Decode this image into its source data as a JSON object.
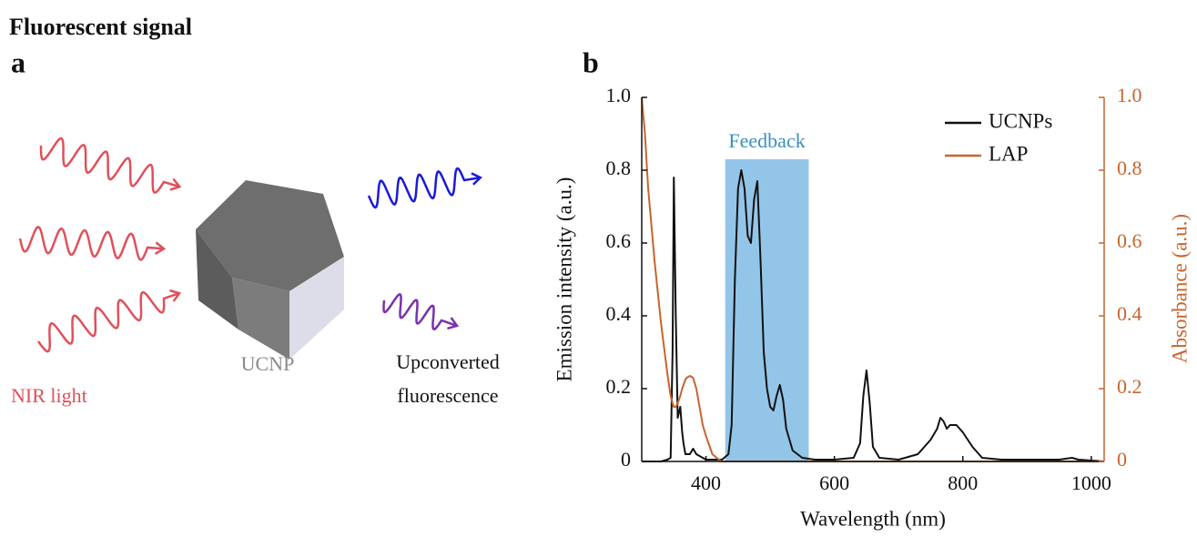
{
  "header": {
    "title": "Fluorescent signal"
  },
  "panel_a": {
    "label": "a",
    "nir_label": "NIR light",
    "particle_label": "UCNP",
    "output_label": [
      "Upconverted",
      "fluorescence"
    ]
  },
  "panel_b": {
    "label": "b"
  },
  "chart_data": {
    "type": "line",
    "x_label": "Wavelength (nm)",
    "y_label": "Emission intensity (a.u.)",
    "y2_label": "Absorbance (a.u.)",
    "annotation": {
      "text": "Feedback",
      "x_range": [
        430,
        560
      ],
      "color": "#93c5e8",
      "text_color": "#3a8fc0"
    },
    "x": [
      300,
      305,
      310,
      320,
      330,
      340,
      345,
      348,
      350,
      353,
      356,
      360,
      363,
      365,
      368,
      370,
      375,
      380,
      385,
      390,
      395,
      400,
      410,
      420,
      425,
      435,
      440,
      445,
      450,
      455,
      460,
      465,
      470,
      475,
      480,
      485,
      490,
      495,
      500,
      505,
      510,
      515,
      520,
      525,
      535,
      550,
      570,
      600,
      630,
      640,
      645,
      650,
      655,
      660,
      670,
      700,
      730,
      750,
      760,
      765,
      770,
      775,
      780,
      790,
      800,
      815,
      830,
      860,
      950,
      970,
      980,
      1020
    ],
    "series": [
      {
        "name": "UCNPs",
        "color": "#111111",
        "values": [
          0,
          0,
          0,
          0,
          0,
          0.005,
          0.01,
          0.3,
          0.78,
          0.4,
          0.12,
          0.15,
          0.08,
          0.05,
          0.02,
          0.02,
          0.02,
          0.035,
          0.02,
          0.015,
          0.01,
          0.005,
          0.005,
          0.005,
          0.005,
          0.02,
          0.1,
          0.5,
          0.75,
          0.8,
          0.75,
          0.62,
          0.6,
          0.72,
          0.77,
          0.55,
          0.3,
          0.2,
          0.15,
          0.14,
          0.18,
          0.21,
          0.17,
          0.09,
          0.03,
          0.01,
          0.005,
          0.005,
          0.01,
          0.05,
          0.18,
          0.25,
          0.16,
          0.04,
          0.01,
          0.005,
          0.02,
          0.06,
          0.09,
          0.12,
          0.11,
          0.09,
          0.1,
          0.1,
          0.08,
          0.04,
          0.01,
          0.005,
          0.005,
          0.01,
          0.005,
          0
        ]
      },
      {
        "name": "LAP",
        "color": "#c8642d",
        "axis": "y2",
        "values": [
          1.0,
          0.9,
          0.75,
          0.55,
          0.38,
          0.24,
          0.18,
          0.16,
          0.15,
          0.15,
          0.16,
          0.18,
          0.2,
          0.21,
          0.225,
          0.23,
          0.235,
          0.23,
          0.2,
          0.15,
          0.1,
          0.07,
          0.02,
          0.005,
          0,
          0,
          0,
          0,
          0,
          0,
          0,
          0,
          0,
          0,
          0,
          0,
          0,
          0,
          0,
          0,
          0,
          0,
          0,
          0,
          0,
          0,
          0,
          0,
          0,
          0,
          0,
          0,
          0,
          0,
          0,
          0,
          0,
          0,
          0,
          0,
          0,
          0,
          0,
          0,
          0,
          0,
          0,
          0,
          0,
          0,
          0,
          0
        ]
      }
    ],
    "xlim": [
      300,
      1020
    ],
    "xticks": [
      400,
      600,
      800,
      1000
    ],
    "ylim": [
      0,
      1
    ],
    "yticks": [
      0,
      0.2,
      0.4,
      0.6,
      0.8,
      {
        "value": 1,
        "label": "1.0"
      }
    ],
    "y2lim": [
      0,
      1
    ],
    "y2ticks": [
      0,
      0.2,
      0.4,
      0.6,
      0.8,
      {
        "value": 1,
        "label": "1.0"
      }
    ],
    "y2_color": "#c8642d",
    "legend": "upper right"
  }
}
